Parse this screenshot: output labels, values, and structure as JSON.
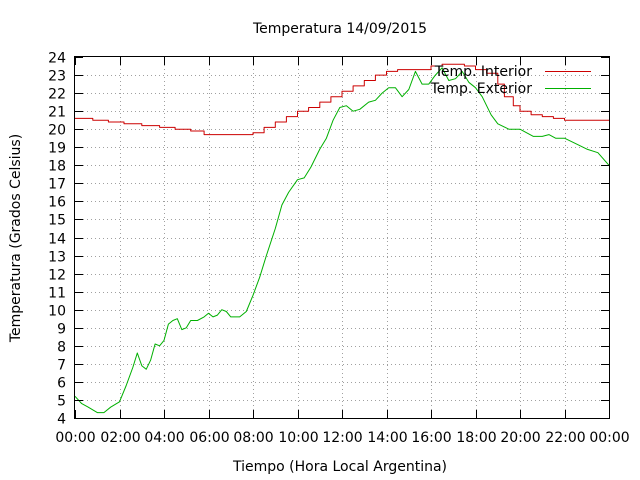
{
  "chart_data": {
    "type": "line",
    "title": "Temperatura 14/09/2015",
    "xlabel": "Tiempo (Hora Local Argentina)",
    "ylabel": "Temperatura (Grados Celsius)",
    "xlim": [
      0,
      24
    ],
    "ylim": [
      4,
      24
    ],
    "x_tick_values": [
      0,
      2,
      4,
      6,
      8,
      10,
      12,
      14,
      16,
      18,
      20,
      22,
      24
    ],
    "x_tick_labels": [
      "00:00",
      "02:00",
      "04:00",
      "06:00",
      "08:00",
      "10:00",
      "12:00",
      "14:00",
      "16:00",
      "18:00",
      "20:00",
      "22:00",
      "00:00"
    ],
    "y_ticks": [
      4,
      5,
      6,
      7,
      8,
      9,
      10,
      11,
      12,
      13,
      14,
      15,
      16,
      17,
      18,
      19,
      20,
      21,
      22,
      23,
      24
    ],
    "grid": true,
    "legend_position": "top-right",
    "series": [
      {
        "name": "Temp. Interior",
        "color": "#cc0000",
        "step": true,
        "x": [
          0,
          0.8,
          1.5,
          2.2,
          3.0,
          3.8,
          4.5,
          5.2,
          5.8,
          7.5,
          8.0,
          8.5,
          9.0,
          9.5,
          10.0,
          10.5,
          11.0,
          11.5,
          12.0,
          12.5,
          13.0,
          13.5,
          14.0,
          14.5,
          15.0,
          16.0,
          16.5,
          17.0,
          17.5,
          18.0,
          18.5,
          19.0,
          19.3,
          19.7,
          20.0,
          20.5,
          21.0,
          21.5,
          22.0,
          23.0,
          24.0
        ],
        "y": [
          20.6,
          20.5,
          20.4,
          20.3,
          20.2,
          20.1,
          20.0,
          19.9,
          19.7,
          19.7,
          19.8,
          20.1,
          20.4,
          20.7,
          21.0,
          21.2,
          21.5,
          21.8,
          22.1,
          22.4,
          22.7,
          23.0,
          23.2,
          23.3,
          23.3,
          23.5,
          23.6,
          23.6,
          23.5,
          23.3,
          23.1,
          22.5,
          21.8,
          21.3,
          21.0,
          20.8,
          20.7,
          20.6,
          20.5,
          20.5,
          20.5
        ]
      },
      {
        "name": "Temp. Exterior",
        "color": "#00b000",
        "step": false,
        "x": [
          0,
          0.3,
          0.6,
          1.0,
          1.3,
          1.6,
          2.0,
          2.3,
          2.6,
          2.8,
          3.0,
          3.2,
          3.4,
          3.6,
          3.8,
          4.0,
          4.2,
          4.4,
          4.6,
          4.8,
          5.0,
          5.2,
          5.5,
          5.8,
          6.0,
          6.2,
          6.4,
          6.6,
          6.8,
          7.0,
          7.2,
          7.4,
          7.7,
          8.0,
          8.3,
          8.6,
          9.0,
          9.3,
          9.6,
          10.0,
          10.3,
          10.6,
          11.0,
          11.3,
          11.6,
          11.9,
          12.2,
          12.5,
          12.8,
          13.2,
          13.5,
          13.8,
          14.1,
          14.4,
          14.7,
          15.0,
          15.3,
          15.6,
          15.9,
          16.2,
          16.5,
          16.8,
          17.1,
          17.4,
          17.7,
          18.0,
          18.3,
          18.7,
          19.0,
          19.5,
          19.8,
          20.0,
          20.3,
          20.6,
          21.0,
          21.3,
          21.6,
          22.0,
          22.5,
          23.0,
          23.5,
          24.0
        ],
        "y": [
          5.2,
          4.8,
          4.6,
          4.3,
          4.3,
          4.6,
          4.9,
          5.8,
          6.8,
          7.6,
          6.9,
          6.7,
          7.2,
          8.1,
          8.0,
          8.3,
          9.2,
          9.4,
          9.5,
          8.9,
          9.0,
          9.4,
          9.4,
          9.6,
          9.8,
          9.6,
          9.7,
          10.0,
          9.9,
          9.6,
          9.6,
          9.6,
          9.9,
          10.8,
          11.8,
          13.0,
          14.5,
          15.8,
          16.5,
          17.2,
          17.3,
          17.9,
          18.9,
          19.5,
          20.5,
          21.2,
          21.3,
          21.0,
          21.1,
          21.5,
          21.6,
          22.0,
          22.3,
          22.3,
          21.8,
          22.2,
          23.2,
          22.5,
          22.5,
          23.0,
          23.4,
          22.7,
          22.8,
          23.2,
          22.6,
          22.3,
          21.8,
          20.8,
          20.3,
          20.0,
          20.0,
          20.0,
          19.8,
          19.6,
          19.6,
          19.7,
          19.5,
          19.5,
          19.2,
          18.9,
          18.7,
          18.0
        ]
      }
    ]
  }
}
